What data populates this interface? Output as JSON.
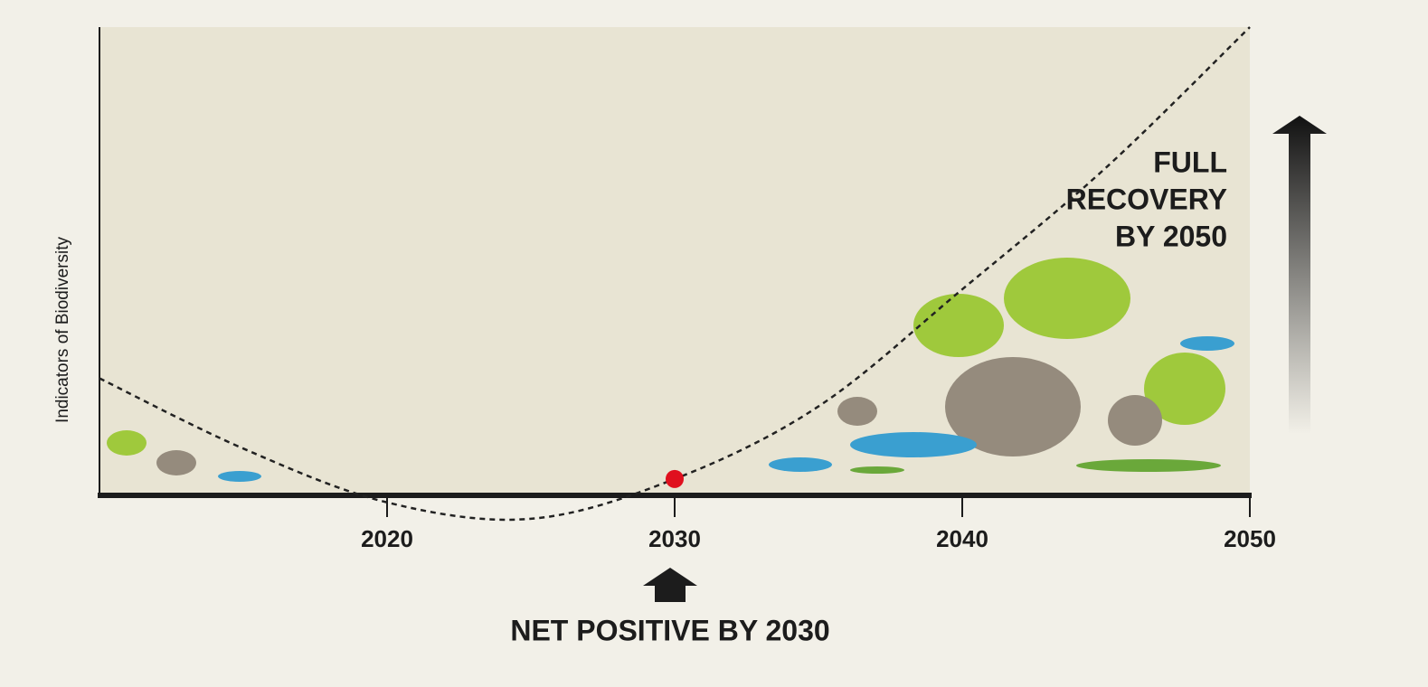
{
  "chart_data": {
    "type": "line",
    "y_label": "Indicators of Biodiversity",
    "x": [
      2010,
      2015,
      2020,
      2025,
      2030,
      2035,
      2040,
      2045,
      2050
    ],
    "values": [
      25,
      10,
      -1.5,
      -5,
      3.5,
      19,
      44,
      70,
      100
    ],
    "color": "#222222",
    "line_style": "dashed",
    "xlim": [
      2010,
      2050
    ],
    "xticks": [
      2020,
      2030,
      2040,
      2050
    ],
    "ylim": [
      -10,
      100
    ],
    "highlight": {
      "x": 2030,
      "value": 3.5,
      "color": "#e0101e"
    },
    "annotations": {
      "full_recovery": [
        "FULL",
        "RECOVERY",
        "BY 2050"
      ],
      "net_positive": "NET POSITIVE BY 2030"
    }
  }
}
